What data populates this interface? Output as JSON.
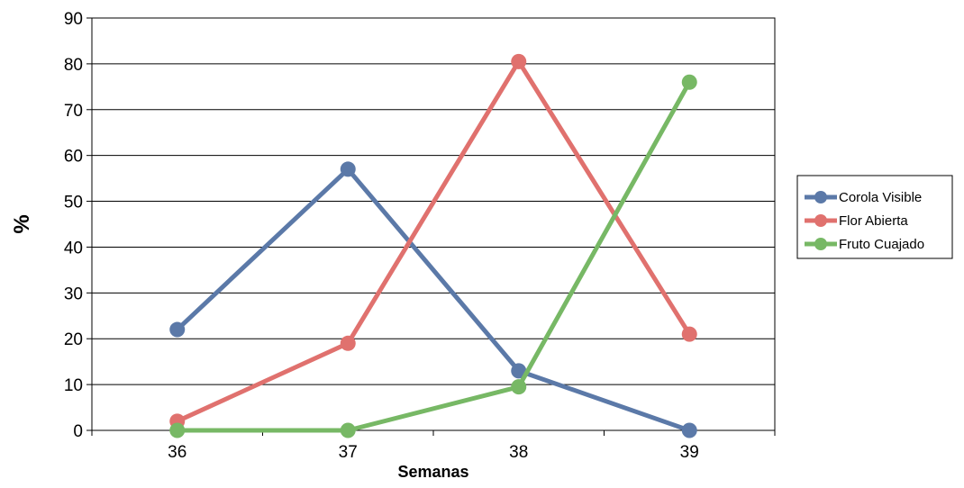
{
  "chart_data": {
    "type": "line",
    "title": "",
    "xlabel": "Semanas",
    "ylabel": "%",
    "categories": [
      "36",
      "37",
      "38",
      "39"
    ],
    "ylim": [
      0,
      90
    ],
    "yticks": [
      0,
      10,
      20,
      30,
      40,
      50,
      60,
      70,
      80,
      90
    ],
    "grid": true,
    "legend_position": "right",
    "series": [
      {
        "name": "Corola Visible",
        "color": "#5b79a8",
        "values": [
          22,
          57,
          13,
          0
        ]
      },
      {
        "name": "Flor Abierta",
        "color": "#e0716e",
        "values": [
          2,
          19,
          80.5,
          21
        ]
      },
      {
        "name": "Fruto Cuajado",
        "color": "#77b865",
        "values": [
          0,
          0,
          9.5,
          76
        ]
      }
    ]
  }
}
